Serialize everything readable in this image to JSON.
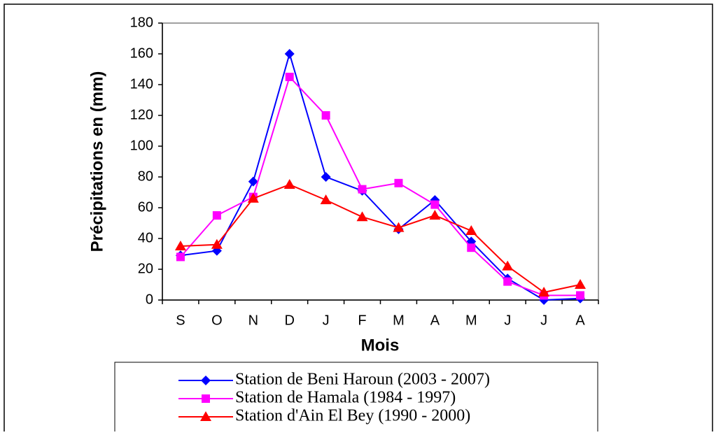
{
  "chart_data": {
    "type": "line",
    "x_label": "Mois",
    "y_label": "Précipitations en (mm)",
    "categories": [
      "S",
      "O",
      "N",
      "D",
      "J",
      "F",
      "M",
      "A",
      "M",
      "J",
      "J",
      "A"
    ],
    "series": [
      {
        "name": "Station de Beni Haroun (2003 - 2007)",
        "color": "#0000ff",
        "marker": "diamond",
        "values": [
          29,
          32,
          77,
          160,
          80,
          71,
          46,
          65,
          38,
          14,
          0,
          1
        ]
      },
      {
        "name": "Station de Hamala (1984 - 1997)",
        "color": "#ff00ff",
        "marker": "square",
        "values": [
          28,
          55,
          67,
          145,
          120,
          72,
          76,
          62,
          34,
          12,
          3,
          3
        ]
      },
      {
        "name": "Station d'Ain El Bey (1990 - 2000)",
        "color": "#ff0000",
        "marker": "triangle",
        "values": [
          35,
          36,
          66,
          75,
          65,
          54,
          47,
          55,
          45,
          22,
          5,
          10
        ]
      }
    ],
    "ylim": [
      0,
      180
    ],
    "yticks": [
      0,
      20,
      40,
      60,
      80,
      100,
      120,
      140,
      160,
      180
    ],
    "grid": false,
    "legend": "bottom"
  }
}
